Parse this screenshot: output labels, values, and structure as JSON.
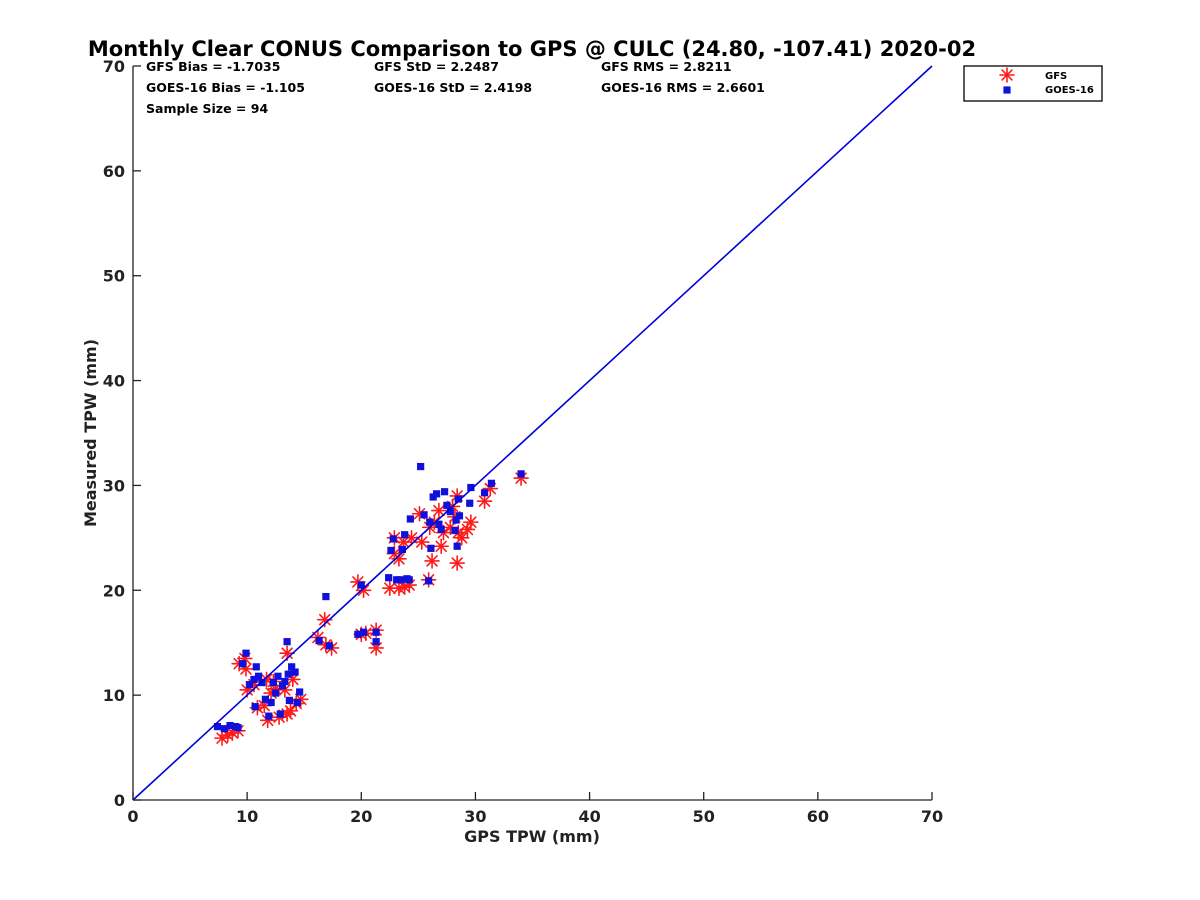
{
  "chart_data": {
    "type": "scatter",
    "title": "Monthly Clear CONUS Comparison to GPS @ CULC (24.80, -107.41) 2020-02",
    "xlabel": "GPS TPW (mm)",
    "ylabel": "Measured TPW (mm)",
    "xlim": [
      0,
      70
    ],
    "ylim": [
      0,
      70
    ],
    "xticks": [
      "0",
      "10",
      "20",
      "30",
      "40",
      "50",
      "60",
      "70"
    ],
    "yticks": [
      "0",
      "10",
      "20",
      "30",
      "40",
      "50",
      "60",
      "70"
    ],
    "grid": false,
    "legend_position": "outside-top-right",
    "stats": [
      [
        "GFS Bias = -1.7035",
        "GFS StD = 2.2487",
        "GFS RMS = 2.8211"
      ],
      [
        "GOES-16 Bias = -1.105",
        "GOES-16 StD = 2.4198",
        "GOES-16 RMS = 2.6601"
      ],
      [
        "Sample Size = 94",
        "",
        ""
      ]
    ],
    "reference_line": {
      "from": [
        0,
        0
      ],
      "to": [
        70,
        70
      ],
      "color": "#0000dd"
    },
    "series": [
      {
        "name": "GFS",
        "marker": "asterisk",
        "color": "#ff1a1a",
        "points": [
          [
            7.8,
            5.9
          ],
          [
            8.3,
            6.2
          ],
          [
            8.7,
            6.4
          ],
          [
            9.2,
            6.6
          ],
          [
            9.3,
            13.0
          ],
          [
            9.8,
            13.5
          ],
          [
            9.9,
            12.5
          ],
          [
            10.0,
            10.5
          ],
          [
            10.6,
            11.0
          ],
          [
            10.9,
            8.8
          ],
          [
            11.5,
            9.0
          ],
          [
            11.7,
            11.5
          ],
          [
            11.8,
            7.6
          ],
          [
            12.3,
            11.3
          ],
          [
            12.5,
            10.6
          ],
          [
            12.8,
            7.9
          ],
          [
            13.3,
            10.5
          ],
          [
            13.5,
            8.2
          ],
          [
            13.8,
            8.5
          ],
          [
            14.0,
            11.5
          ],
          [
            14.3,
            9.2
          ],
          [
            14.7,
            9.6
          ],
          [
            13.5,
            14.0
          ],
          [
            12.1,
            10.2
          ],
          [
            16.2,
            15.5
          ],
          [
            16.8,
            17.2
          ],
          [
            16.9,
            14.8
          ],
          [
            17.4,
            14.5
          ],
          [
            19.7,
            20.8
          ],
          [
            20.2,
            20.0
          ],
          [
            20.0,
            15.8
          ],
          [
            20.4,
            15.9
          ],
          [
            21.3,
            16.2
          ],
          [
            21.3,
            14.5
          ],
          [
            22.5,
            20.2
          ],
          [
            22.9,
            23.5
          ],
          [
            22.9,
            25.0
          ],
          [
            23.3,
            20.2
          ],
          [
            23.3,
            23.0
          ],
          [
            23.7,
            24.6
          ],
          [
            23.8,
            20.3
          ],
          [
            24.2,
            20.5
          ],
          [
            24.4,
            25.0
          ],
          [
            25.1,
            27.3
          ],
          [
            25.3,
            24.6
          ],
          [
            25.9,
            21.0
          ],
          [
            26.0,
            26.0
          ],
          [
            26.2,
            22.8
          ],
          [
            26.4,
            26.5
          ],
          [
            26.8,
            27.6
          ],
          [
            27.0,
            24.2
          ],
          [
            27.2,
            25.5
          ],
          [
            27.8,
            26.0
          ],
          [
            28.2,
            27.0
          ],
          [
            28.4,
            22.6
          ],
          [
            28.4,
            29.0
          ],
          [
            28.5,
            25.5
          ],
          [
            28.8,
            25.0
          ],
          [
            29.3,
            25.8
          ],
          [
            29.6,
            26.5
          ],
          [
            30.8,
            28.5
          ],
          [
            31.3,
            29.7
          ],
          [
            34.0,
            30.7
          ],
          [
            28.0,
            28.0
          ]
        ]
      },
      {
        "name": "GOES-16",
        "marker": "square",
        "color": "#1010dd",
        "points": [
          [
            7.4,
            7.0
          ],
          [
            8.0,
            6.8
          ],
          [
            8.5,
            7.1
          ],
          [
            9.0,
            7.0
          ],
          [
            9.2,
            6.9
          ],
          [
            9.6,
            13.0
          ],
          [
            9.9,
            14.0
          ],
          [
            10.2,
            11.0
          ],
          [
            10.6,
            11.5
          ],
          [
            10.8,
            12.7
          ],
          [
            11.0,
            11.8
          ],
          [
            11.3,
            11.2
          ],
          [
            11.6,
            9.6
          ],
          [
            11.9,
            8.0
          ],
          [
            12.1,
            9.3
          ],
          [
            12.3,
            11.2
          ],
          [
            12.5,
            10.2
          ],
          [
            12.7,
            11.8
          ],
          [
            12.9,
            8.2
          ],
          [
            13.1,
            10.9
          ],
          [
            13.3,
            11.3
          ],
          [
            13.5,
            15.1
          ],
          [
            13.6,
            12.0
          ],
          [
            13.7,
            9.5
          ],
          [
            13.9,
            12.7
          ],
          [
            14.2,
            12.2
          ],
          [
            14.4,
            9.3
          ],
          [
            14.6,
            10.3
          ],
          [
            10.7,
            8.9
          ],
          [
            16.3,
            15.2
          ],
          [
            16.9,
            19.4
          ],
          [
            17.2,
            14.7
          ],
          [
            19.7,
            15.8
          ],
          [
            20.2,
            16.0
          ],
          [
            20.0,
            20.5
          ],
          [
            21.3,
            15.1
          ],
          [
            21.3,
            16.0
          ],
          [
            22.4,
            21.2
          ],
          [
            22.6,
            23.8
          ],
          [
            22.8,
            24.9
          ],
          [
            23.1,
            21.0
          ],
          [
            23.4,
            21.0
          ],
          [
            23.6,
            23.9
          ],
          [
            23.8,
            25.3
          ],
          [
            24.0,
            21.1
          ],
          [
            24.3,
            26.8
          ],
          [
            24.2,
            21.0
          ],
          [
            25.2,
            31.8
          ],
          [
            25.5,
            27.2
          ],
          [
            25.9,
            20.9
          ],
          [
            26.0,
            26.5
          ],
          [
            26.1,
            24.0
          ],
          [
            26.3,
            28.9
          ],
          [
            26.6,
            29.2
          ],
          [
            26.8,
            26.3
          ],
          [
            27.0,
            25.8
          ],
          [
            27.3,
            29.4
          ],
          [
            27.5,
            28.1
          ],
          [
            27.8,
            27.5
          ],
          [
            28.3,
            26.7
          ],
          [
            28.5,
            28.7
          ],
          [
            28.6,
            27.1
          ],
          [
            28.4,
            24.2
          ],
          [
            29.6,
            29.8
          ],
          [
            29.5,
            28.3
          ],
          [
            30.8,
            29.3
          ],
          [
            31.4,
            30.2
          ],
          [
            34.0,
            31.1
          ],
          [
            28.2,
            25.7
          ]
        ]
      }
    ]
  }
}
